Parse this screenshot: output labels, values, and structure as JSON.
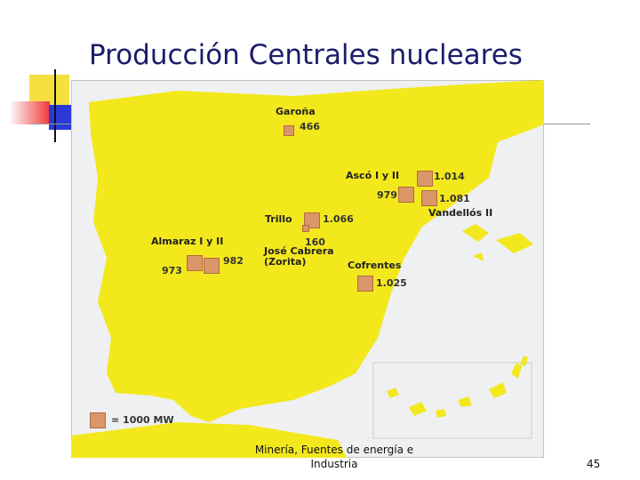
{
  "title": "Producción Centrales nucleares",
  "map": {
    "plants": [
      {
        "name": "Garoña",
        "units": [
          466
        ]
      },
      {
        "name": "Ascó I y II",
        "units": [
          {
            "value": 1014,
            "label": "1.014"
          },
          979
        ]
      },
      {
        "name": "Vandellós II",
        "units": [
          {
            "value": 1081,
            "label": "1.081"
          }
        ]
      },
      {
        "name": "Trillo",
        "units": [
          {
            "value": 1066,
            "label": "1.066"
          }
        ]
      },
      {
        "name": "José Cabrera (Zorita)",
        "units": [
          160
        ]
      },
      {
        "name": "Almaraz I y II",
        "units": [
          982,
          973
        ]
      },
      {
        "name": "Cofrentes",
        "units": [
          {
            "value": 1025,
            "label": "1.025"
          }
        ]
      }
    ],
    "legend": "= 1000 MW"
  },
  "footer": {
    "source": "Minería, Fuentes de energía e Industria",
    "page": 45
  }
}
